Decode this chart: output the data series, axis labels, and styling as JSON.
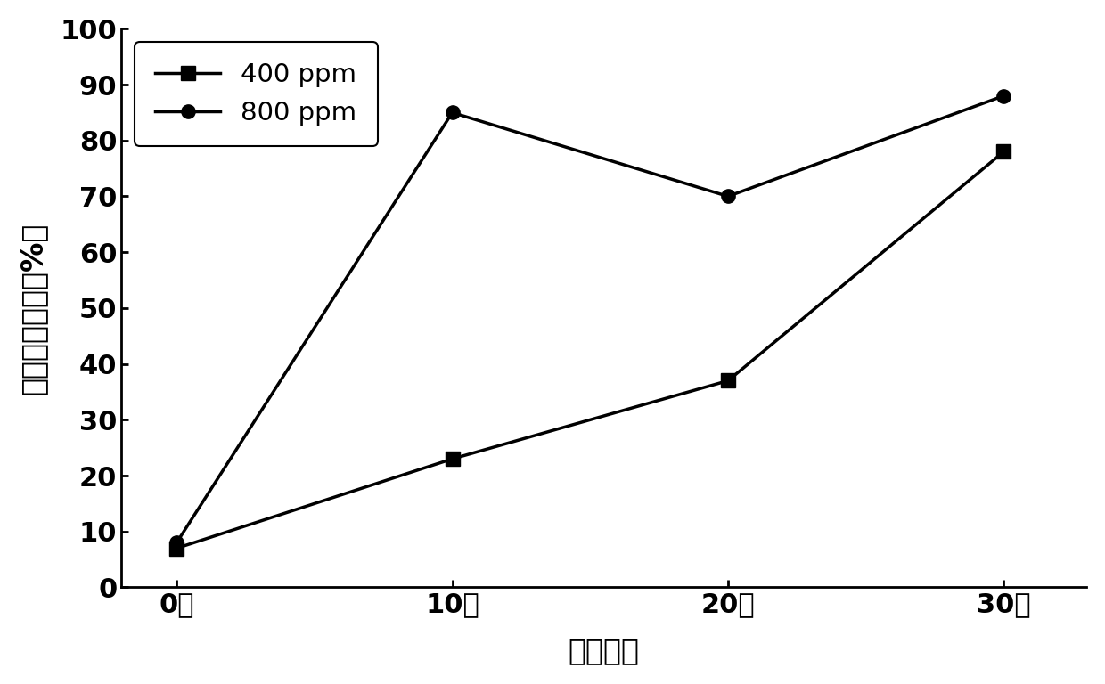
{
  "x_values": [
    0,
    10,
    20,
    30
  ],
  "x_labels": [
    "0天",
    "10天",
    "20天",
    "30天"
  ],
  "series_400ppm": [
    7,
    23,
    37,
    78
  ],
  "series_800ppm": [
    8,
    85,
    70,
    88
  ],
  "xlabel": "处理时间",
  "ylabel": "生物量增长率（%）",
  "legend_400": "400 ppm",
  "legend_800": "800 ppm",
  "ylim": [
    0,
    100
  ],
  "yticks": [
    0,
    10,
    20,
    30,
    40,
    50,
    60,
    70,
    80,
    90,
    100
  ],
  "line_color": "#000000",
  "marker_square": "s",
  "marker_circle": "o",
  "marker_size": 11,
  "linewidth": 2.5,
  "label_fontsize": 24,
  "tick_fontsize": 22,
  "legend_fontsize": 21,
  "background_color": "#ffffff"
}
